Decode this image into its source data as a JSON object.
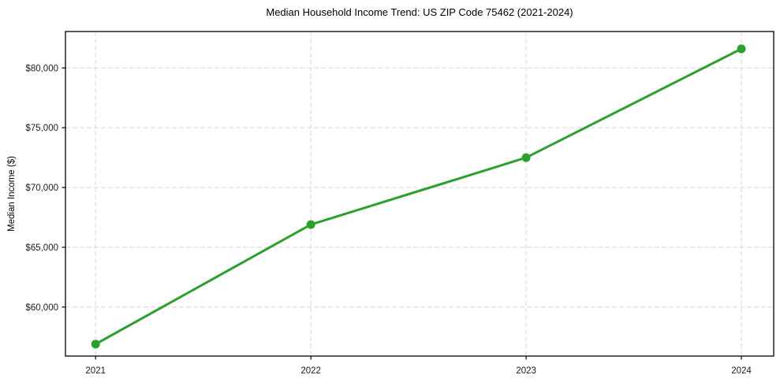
{
  "chart_data": {
    "type": "line",
    "title": "Median Household Income Trend: US ZIP Code 75462 (2021-2024)",
    "xlabel": "",
    "ylabel": "Median Income ($)",
    "x": [
      2021,
      2022,
      2023,
      2024
    ],
    "series": [
      {
        "name": "Median Household Income",
        "values": [
          56900,
          66900,
          72500,
          81600
        ]
      }
    ],
    "xticks": [
      2021,
      2022,
      2023,
      2024
    ],
    "xtick_labels": [
      "2021",
      "2022",
      "2023",
      "2024"
    ],
    "yticks": [
      60000,
      65000,
      70000,
      75000,
      80000
    ],
    "ytick_labels": [
      "$60,000",
      "$65,000",
      "$70,000",
      "$75,000",
      "$80,000"
    ],
    "xlim": [
      2020.86,
      2024.15
    ],
    "ylim": [
      55900,
      83050
    ],
    "grid": true,
    "legend": "none",
    "line_color": "#2ca02c",
    "marker": "circle",
    "marker_color": "#2ca02c",
    "grid_color": "#d8d8d8",
    "spine_color": "#000000",
    "tick_text_color": "#1a1a1a"
  }
}
